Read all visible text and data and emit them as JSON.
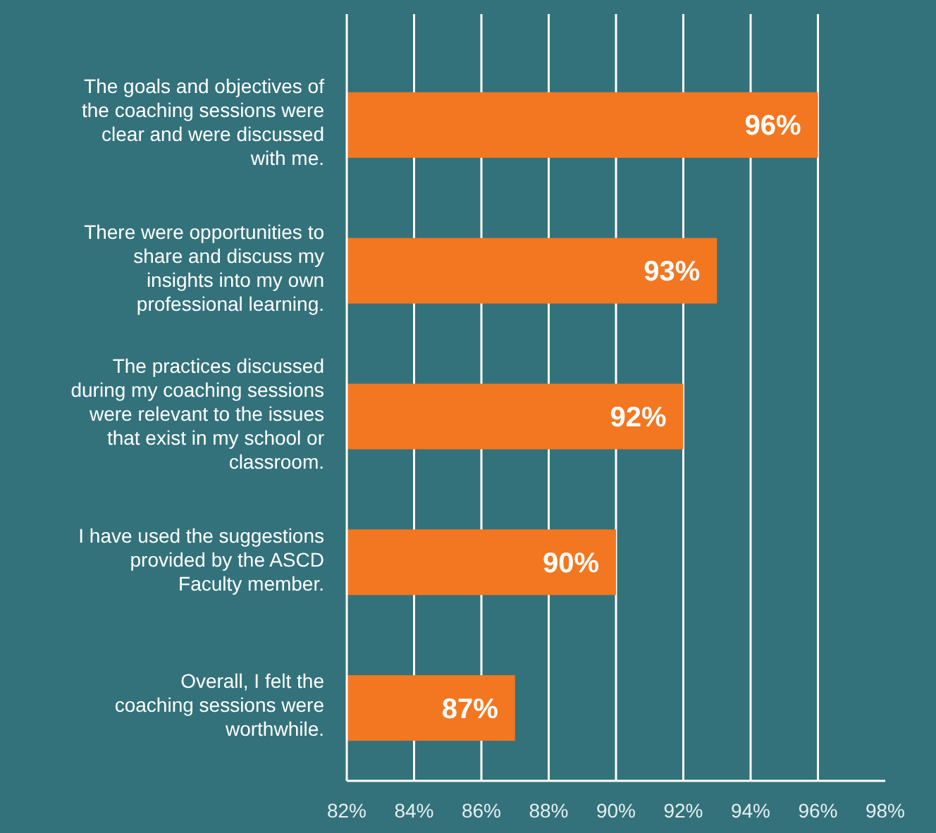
{
  "chart_data": {
    "type": "bar",
    "orientation": "horizontal",
    "categories": [
      "The goals and objectives of the coaching sessions were clear and were discussed with me.",
      "There were opportunities to share and discuss my insights into my own professional learning.",
      "The practices discussed during my coaching sessions were relevant to the issues that exist in my school or classroom.",
      "I have used the suggestions provided by the ASCD Faculty member.",
      "Overall, I felt the coaching sessions were worthwhile."
    ],
    "values": [
      96,
      93,
      92,
      90,
      87
    ],
    "value_labels": [
      "96%",
      "93%",
      "92%",
      "90%",
      "87%"
    ],
    "color": "#f37721",
    "xlim": [
      82,
      98
    ],
    "xticks": [
      {
        "value": 82,
        "label": "82%"
      },
      {
        "value": 84,
        "label": "84%"
      },
      {
        "value": 86,
        "label": "86%"
      },
      {
        "value": 88,
        "label": "88%"
      },
      {
        "value": 90,
        "label": "90%"
      },
      {
        "value": 92,
        "label": "92%"
      },
      {
        "value": 94,
        "label": "94%"
      },
      {
        "value": 96,
        "label": "96%"
      },
      {
        "value": 98,
        "label": "98%"
      }
    ],
    "grid": "x"
  }
}
